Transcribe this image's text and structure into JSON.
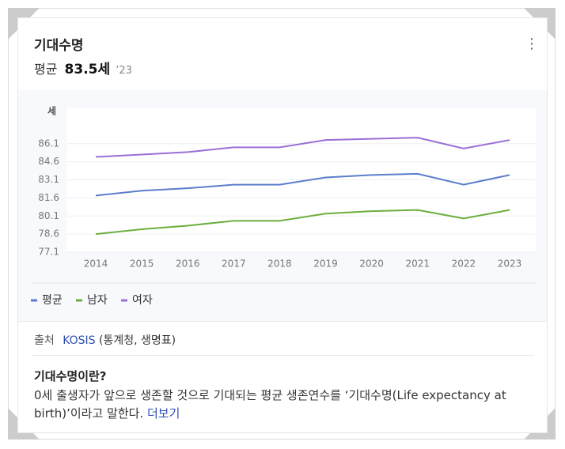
{
  "header": {
    "title": "기대수명",
    "avg_label": "평균",
    "avg_value": "83.5세",
    "year": "’23"
  },
  "chart_data": {
    "type": "line",
    "ylabel": "세",
    "categories": [
      "2014",
      "2015",
      "2016",
      "2017",
      "2018",
      "2019",
      "2020",
      "2021",
      "2022",
      "2023"
    ],
    "series": [
      {
        "name": "평균",
        "color": "#5b7dcc",
        "values": [
          81.8,
          82.2,
          82.4,
          82.7,
          82.7,
          83.3,
          83.5,
          83.6,
          82.7,
          83.5
        ]
      },
      {
        "name": "남자",
        "color": "#6bae3c",
        "values": [
          78.6,
          79.0,
          79.3,
          79.7,
          79.7,
          80.3,
          80.5,
          80.6,
          79.9,
          80.6
        ]
      },
      {
        "name": "여자",
        "color": "#9a6fd6",
        "values": [
          85.0,
          85.2,
          85.4,
          85.8,
          85.8,
          86.4,
          86.5,
          86.6,
          85.7,
          86.4
        ]
      }
    ],
    "ylim": [
      77.1,
      89.1
    ],
    "yticks": [
      77.1,
      78.6,
      80.1,
      81.6,
      83.1,
      84.6,
      86.1
    ],
    "grid": true
  },
  "source": {
    "label": "출처",
    "link": "KOSIS",
    "detail": "(통계청, 생명표)"
  },
  "definition": {
    "title": "기대수명이란?",
    "text": "0세 출생자가 앞으로 생존할 것으로 기대되는 평균 생존연수를 ‘기대수명(Life expectancy at birth)’이라고 말한다.",
    "more": "더보기"
  }
}
